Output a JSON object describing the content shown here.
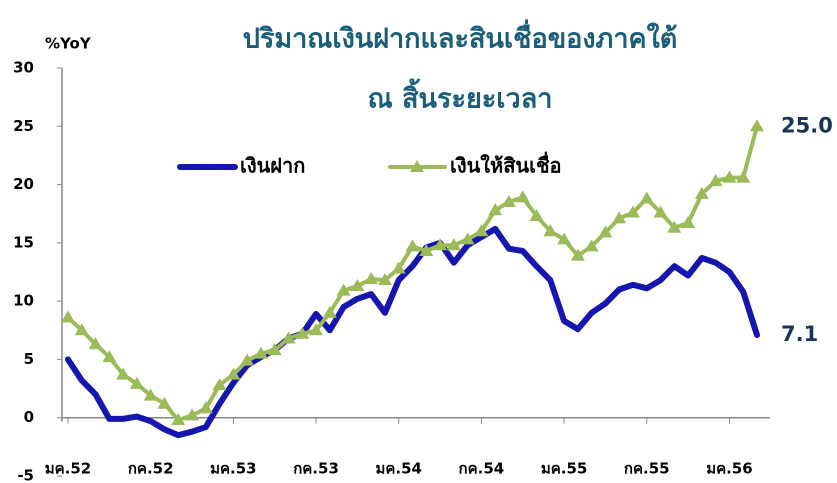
{
  "chart_data": {
    "type": "line",
    "title": [
      "ปริมาณเงินฝากและสินเชื่อของภาคใต้",
      "ณ สิ้นระยะเวลา"
    ],
    "y_label": "%YoY",
    "categories": [
      "มค.52",
      null,
      null,
      null,
      null,
      null,
      "กค.52",
      null,
      null,
      null,
      null,
      null,
      "มค.53",
      null,
      null,
      null,
      null,
      null,
      "กค.53",
      null,
      null,
      null,
      null,
      null,
      "มค.54",
      null,
      null,
      null,
      null,
      null,
      "กค.54",
      null,
      null,
      null,
      null,
      null,
      "มค.55",
      null,
      null,
      null,
      null,
      null,
      "กค.55",
      null,
      null,
      null,
      null,
      null,
      "มค.56",
      null,
      null
    ],
    "series": [
      {
        "name": "เงินฝาก",
        "color": "#1515b0",
        "marker": "none",
        "values": [
          5.0,
          3.2,
          2.0,
          -0.1,
          -0.1,
          0.1,
          -0.3,
          -1.0,
          -1.5,
          -1.2,
          -0.8,
          1.2,
          3.0,
          4.5,
          5.2,
          5.8,
          6.8,
          7.2,
          8.9,
          7.5,
          9.5,
          10.2,
          10.6,
          9.0,
          11.8,
          13.0,
          14.6,
          15.0,
          13.3,
          14.8,
          15.5,
          16.2,
          14.5,
          14.3,
          13.0,
          11.8,
          8.3,
          7.6,
          9.0,
          9.8,
          11.0,
          11.4,
          11.1,
          11.8,
          13.0,
          12.2,
          13.7,
          13.3,
          12.5,
          10.8,
          7.1
        ],
        "value_labels": [
          null,
          null,
          null,
          null,
          null,
          null,
          null,
          null,
          null,
          null,
          null,
          null,
          null,
          null,
          null,
          null,
          null,
          null,
          null,
          null,
          null,
          null,
          null,
          null,
          null,
          null,
          null,
          null,
          null,
          null,
          null,
          null,
          null,
          null,
          null,
          null,
          null,
          null,
          null,
          null,
          null,
          null,
          null,
          null,
          null,
          null,
          null,
          null,
          null,
          null,
          "7.1"
        ]
      },
      {
        "name": "เงินให้สินเชื่อ",
        "color": "#9bbb59",
        "marker": "triangle",
        "values": [
          8.6,
          7.5,
          6.3,
          5.2,
          3.7,
          2.9,
          1.9,
          1.2,
          -0.2,
          0.2,
          0.8,
          2.8,
          3.7,
          4.9,
          5.5,
          5.8,
          6.8,
          7.2,
          7.5,
          9.0,
          10.9,
          11.3,
          11.9,
          11.8,
          12.8,
          14.7,
          14.3,
          14.8,
          14.8,
          15.3,
          16.0,
          17.8,
          18.5,
          18.9,
          17.3,
          16.0,
          15.3,
          13.9,
          14.7,
          15.9,
          17.1,
          17.6,
          18.8,
          17.6,
          16.3,
          16.7,
          19.2,
          20.3,
          20.6,
          20.6,
          25.0
        ],
        "value_labels": [
          null,
          null,
          null,
          null,
          null,
          null,
          null,
          null,
          null,
          null,
          null,
          null,
          null,
          null,
          null,
          null,
          null,
          null,
          null,
          null,
          null,
          null,
          null,
          null,
          null,
          null,
          null,
          null,
          null,
          null,
          null,
          null,
          null,
          null,
          null,
          null,
          null,
          null,
          null,
          null,
          null,
          null,
          null,
          null,
          null,
          null,
          null,
          null,
          null,
          null,
          "25.0"
        ]
      }
    ],
    "ylim": [
      -5,
      30
    ],
    "yticks": [
      -5,
      0,
      5,
      10,
      15,
      20,
      25,
      30
    ],
    "grid": false,
    "legend": "top"
  }
}
